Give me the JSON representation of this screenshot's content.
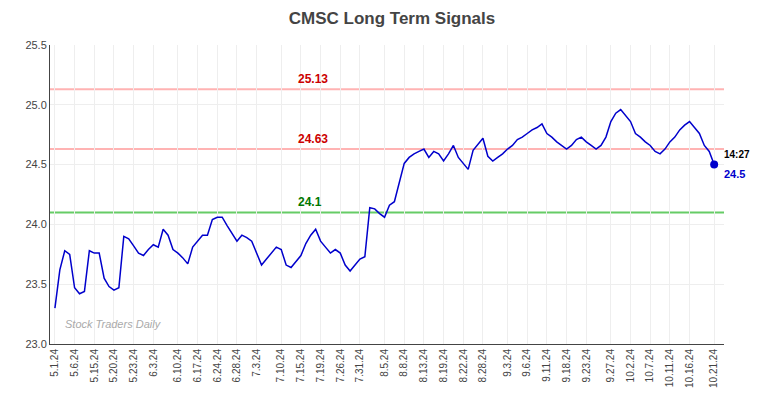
{
  "chart_data": {
    "type": "line",
    "title": "CMSC Long Term Signals",
    "categories": [
      "5.1.24",
      null,
      null,
      null,
      "5.6.24",
      null,
      null,
      null,
      "5.15.24",
      null,
      null,
      null,
      "5.20.24",
      null,
      null,
      null,
      "5.23.24",
      null,
      null,
      null,
      "6.3.24",
      null,
      null,
      null,
      null,
      "6.10.24",
      null,
      null,
      null,
      "6.17.24",
      null,
      null,
      null,
      "6.24.24",
      null,
      null,
      null,
      "6.28.24",
      null,
      null,
      null,
      "7.3.24",
      null,
      null,
      null,
      null,
      "7.10.24",
      null,
      null,
      null,
      "7.15.24",
      null,
      null,
      null,
      "7.19.24",
      null,
      null,
      null,
      "7.26.24",
      null,
      null,
      null,
      "7.31.24",
      null,
      null,
      null,
      null,
      "8.5.24",
      null,
      null,
      null,
      "8.8.24",
      null,
      null,
      null,
      "8.13.24",
      null,
      null,
      null,
      "8.19.24",
      null,
      null,
      null,
      "8.22.24",
      null,
      null,
      null,
      "8.28.24",
      null,
      null,
      null,
      null,
      "9.3.24",
      null,
      null,
      null,
      "9.6.24",
      null,
      null,
      null,
      "9.11.24",
      null,
      null,
      null,
      "9.18.24",
      null,
      null,
      null,
      "9.23.24",
      null,
      null,
      null,
      null,
      "9.27.24",
      null,
      null,
      null,
      "10.2.24",
      null,
      null,
      null,
      "10.7.24",
      null,
      null,
      null,
      "10.11.24",
      null,
      null,
      null,
      "10.16.24",
      null,
      null,
      null,
      null,
      "10.21.24"
    ],
    "series": [
      {
        "color": "#0000cc",
        "values": [
          23.3,
          23.62,
          23.78,
          23.75,
          23.47,
          23.42,
          23.44,
          23.78,
          23.76,
          23.76,
          23.55,
          23.48,
          23.45,
          23.47,
          23.9,
          23.88,
          23.82,
          23.76,
          23.74,
          23.79,
          23.83,
          23.81,
          23.96,
          23.91,
          23.79,
          23.76,
          23.72,
          23.67,
          23.81,
          23.86,
          23.91,
          23.91,
          24.04,
          24.06,
          24.06,
          23.99,
          23.93,
          23.86,
          23.91,
          23.89,
          23.86,
          23.76,
          23.66,
          23.71,
          23.76,
          23.81,
          23.79,
          23.66,
          23.64,
          23.69,
          23.74,
          23.84,
          23.91,
          23.96,
          23.86,
          23.81,
          23.76,
          23.79,
          23.76,
          23.66,
          23.61,
          23.66,
          23.71,
          23.73,
          24.14,
          24.13,
          24.09,
          24.06,
          24.16,
          24.19,
          24.36,
          24.51,
          24.56,
          24.59,
          24.61,
          24.63,
          24.56,
          24.61,
          24.59,
          24.53,
          24.59,
          24.66,
          24.56,
          24.51,
          24.46,
          24.62,
          24.67,
          24.72,
          24.57,
          24.53,
          24.56,
          24.59,
          24.63,
          24.66,
          24.71,
          24.73,
          24.76,
          24.79,
          24.81,
          24.84,
          24.76,
          24.73,
          24.69,
          24.66,
          24.63,
          24.66,
          24.71,
          24.73,
          24.69,
          24.66,
          24.63,
          24.66,
          24.73,
          24.86,
          24.93,
          24.96,
          24.91,
          24.86,
          24.76,
          24.73,
          24.69,
          24.66,
          24.61,
          24.59,
          24.63,
          24.69,
          24.73,
          24.79,
          24.83,
          24.86,
          24.81,
          24.76,
          24.66,
          24.61,
          24.5
        ]
      }
    ],
    "reference_lines": [
      {
        "value": 25.13,
        "label": "25.13",
        "color": "#ffb3b3",
        "label_color": "#cc0000"
      },
      {
        "value": 24.63,
        "label": "24.63",
        "color": "#ffb3b3",
        "label_color": "#cc0000"
      },
      {
        "value": 24.1,
        "label": "24.1",
        "color": "#66cc66",
        "label_color": "#007700"
      }
    ],
    "last_point": {
      "time_label": "14:27",
      "value": 24.5,
      "value_label": "24.5",
      "color": "#0000cc"
    },
    "watermark": "Stock Traders Daily",
    "ylim": [
      23.0,
      25.5
    ],
    "yticks": [
      {
        "value": 23.0,
        "label": "23.0"
      },
      23.5,
      {
        "value": 24.0,
        "label": "24.0"
      },
      24.5,
      {
        "value": 25.0,
        "label": "25.0"
      },
      25.5
    ],
    "grid": true
  }
}
